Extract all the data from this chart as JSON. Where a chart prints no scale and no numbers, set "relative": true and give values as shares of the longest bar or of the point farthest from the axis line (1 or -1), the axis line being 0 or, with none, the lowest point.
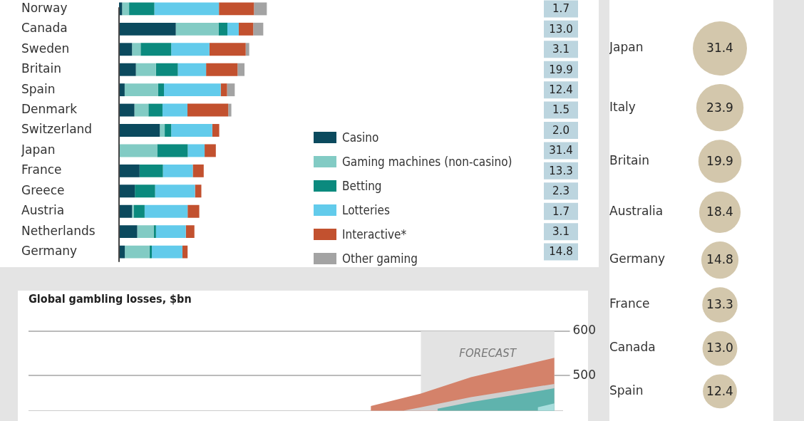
{
  "chart_data": [
    {
      "type": "bar",
      "orientation": "horizontal",
      "stacked": true,
      "relative": true,
      "legend": "bottom right",
      "categories": [
        "Norway",
        "Canada",
        "Sweden",
        "Britain",
        "Spain",
        "Denmark",
        "Switzerland",
        "Japan",
        "France",
        "Greece",
        "Austria",
        "Netherlands",
        "Germany"
      ],
      "series": [
        {
          "name": "Casino",
          "color": "#0b4a5e",
          "values": [
            0.021,
            0.384,
            0.088,
            0.114,
            0.038,
            0.104,
            0.276,
            0,
            0.139,
            0.107,
            0.088,
            0.123,
            0.039
          ]
        },
        {
          "name": "Gaming machines (non-casino)",
          "color": "#82cbc4",
          "values": [
            0.047,
            0.289,
            0.058,
            0.136,
            0.227,
            0.095,
            0.033,
            0.258,
            0,
            0,
            0.011,
            0.111,
            0.167
          ]
        },
        {
          "name": "Betting",
          "color": "#0b8a7e",
          "values": [
            0.171,
            0.06,
            0.207,
            0.148,
            0.039,
            0.095,
            0.044,
            0.207,
            0.158,
            0.137,
            0.074,
            0.016,
            0.016
          ]
        },
        {
          "name": "Lotteries",
          "color": "#62cbeb",
          "values": [
            0.437,
            0.077,
            0.259,
            0.191,
            0.384,
            0.169,
            0.278,
            0.114,
            0.202,
            0.27,
            0.291,
            0.202,
            0.207
          ]
        },
        {
          "name": "Interactive*",
          "color": "#c2512f",
          "values": [
            0.237,
            0.098,
            0.245,
            0.213,
            0.043,
            0.276,
            0.047,
            0.076,
            0.074,
            0.043,
            0.079,
            0.058,
            0.035
          ]
        },
        {
          "name": "Other gaming",
          "color": "#a3a3a3",
          "values": [
            0.087,
            0.068,
            0.024,
            0.047,
            0.052,
            0.021,
            0,
            0,
            0,
            0,
            0,
            0,
            0
          ]
        }
      ],
      "annotations": [
        "1.7",
        "13.0",
        "3.1",
        "19.9",
        "12.4",
        "1.5",
        "2.0",
        "31.4",
        "13.3",
        "2.3",
        "1.7",
        "3.1",
        "14.8"
      ]
    },
    {
      "type": "other",
      "value_labels": [
        "31.4",
        "23.9",
        "19.9",
        "18.4",
        "14.8",
        "13.3",
        "13.0",
        "12.4"
      ],
      "color": "#d3c7ac",
      "categories": [
        "Japan",
        "Italy",
        "Britain",
        "Australia",
        "Germany",
        "France",
        "Canada",
        "Spain"
      ],
      "values": [
        31.4,
        23.9,
        19.9,
        18.4,
        14.8,
        13.3,
        13.0,
        12.4
      ]
    },
    {
      "type": "area",
      "title": "Global gambling losses, $bn",
      "grid": "y",
      "tick_labels": "y",
      "categories": [
        null,
        null,
        null,
        null,
        null,
        null,
        null,
        null,
        null,
        null,
        null,
        null,
        null,
        null,
        null,
        null,
        null,
        null,
        null,
        null,
        null,
        null,
        null,
        null,
        null,
        null,
        null,
        null,
        null,
        null,
        null,
        null
      ],
      "ylim": [
        420,
        600
      ],
      "yticks": [
        500,
        600
      ],
      "annotations": [
        "FORECAST"
      ],
      "series": [
        {
          "color": "#d4826a",
          "values": [
            null,
            null,
            null,
            null,
            null,
            null,
            null,
            null,
            null,
            null,
            null,
            null,
            null,
            null,
            null,
            null,
            null,
            null,
            null,
            null,
            431,
            null,
            null,
            459,
            null,
            null,
            496,
            null,
            null,
            null,
            null,
            540
          ]
        },
        {
          "color": "#cfcfcf",
          "values": [
            null,
            null,
            null,
            null,
            null,
            null,
            null,
            null,
            null,
            null,
            null,
            null,
            null,
            null,
            null,
            null,
            null,
            null,
            null,
            null,
            null,
            null,
            421,
            428,
            null,
            null,
            451,
            null,
            null,
            null,
            null,
            481
          ]
        },
        {
          "color": "#5fb3ad",
          "values": [
            null,
            null,
            null,
            null,
            null,
            null,
            null,
            null,
            null,
            null,
            null,
            null,
            null,
            null,
            null,
            null,
            null,
            null,
            null,
            null,
            null,
            null,
            null,
            null,
            425,
            null,
            440,
            null,
            null,
            null,
            null,
            471
          ]
        },
        {
          "color": "#a8dedd",
          "values": [
            null,
            null,
            null,
            null,
            null,
            null,
            null,
            null,
            null,
            null,
            null,
            null,
            null,
            null,
            null,
            null,
            null,
            null,
            null,
            null,
            null,
            null,
            null,
            null,
            null,
            null,
            null,
            null,
            null,
            null,
            428,
            437
          ]
        }
      ]
    }
  ]
}
